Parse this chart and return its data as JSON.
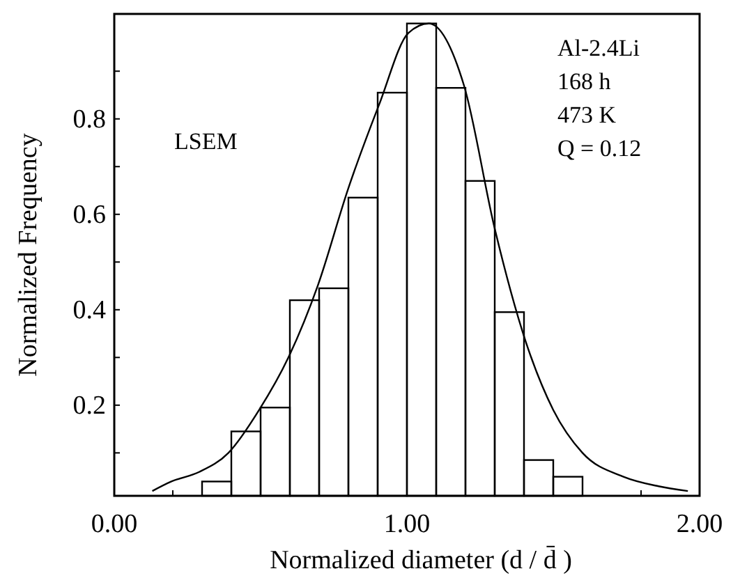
{
  "chart_data": {
    "type": "histogram",
    "xlabel": "Normalized diameter (d / d̄ )",
    "ylabel": "Normalized Frequency",
    "bins": [
      0.3,
      0.4,
      0.5,
      0.6,
      0.7,
      0.8,
      0.9,
      1.0,
      1.1,
      1.2,
      1.3,
      1.4,
      1.5,
      1.6
    ],
    "values": [
      0.04,
      0.145,
      0.195,
      0.42,
      0.445,
      0.635,
      0.855,
      1.0,
      0.865,
      0.67,
      0.395,
      0.085,
      0.05
    ],
    "color": "#000000",
    "series": [
      {
        "type": "line",
        "color": "#000000",
        "x": [
          0.13,
          0.195,
          0.29,
          0.39,
          0.495,
          0.595,
          0.695,
          0.8,
          0.905,
          1.005,
          1.075,
          1.195,
          1.3,
          1.405,
          1.5,
          1.6,
          1.74,
          1.86,
          1.96
        ],
        "values": [
          0.02,
          0.04,
          0.06,
          0.1,
          0.19,
          0.3,
          0.45,
          0.655,
          0.83,
          0.98,
          1.0,
          0.87,
          0.57,
          0.335,
          0.19,
          0.1,
          0.05,
          0.03,
          0.02
        ]
      }
    ],
    "xlim": [
      0,
      2
    ],
    "ylim": [
      0.01,
      1.02
    ],
    "xticks": [
      {
        "value": 0,
        "label": "0.00"
      },
      {
        "value": 0.2,
        "label": null
      },
      {
        "value": 0.4,
        "label": null
      },
      {
        "value": 0.6,
        "label": null
      },
      {
        "value": 0.8,
        "label": null
      },
      {
        "value": 1,
        "label": "1.00"
      },
      {
        "value": 1.2,
        "label": null
      },
      {
        "value": 1.4,
        "label": null
      },
      {
        "value": 1.6,
        "label": null
      },
      {
        "value": 1.8,
        "label": null
      },
      {
        "value": 2,
        "label": "2.00"
      }
    ],
    "yticks": [
      {
        "value": 0.1,
        "label": null
      },
      0.2,
      {
        "value": 0.3,
        "label": null
      },
      0.4,
      {
        "value": 0.5,
        "label": null
      },
      0.6,
      {
        "value": 0.7,
        "label": null
      },
      0.8,
      {
        "value": 0.9,
        "label": null
      }
    ],
    "annotations": [
      "LSEM",
      "Al-2.4Li",
      "168 h",
      "473 K",
      "Q = 0.12"
    ]
  }
}
